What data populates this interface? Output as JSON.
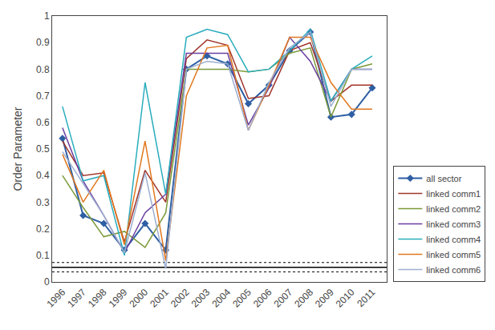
{
  "chart_data": {
    "type": "line",
    "x": [
      1996,
      1997,
      1998,
      1999,
      2000,
      2001,
      2002,
      2003,
      2004,
      2005,
      2006,
      2007,
      2008,
      2009,
      2010,
      2011
    ],
    "series": [
      {
        "name": "all sector",
        "color": "#2E5FA3",
        "marker": "diamond",
        "values": [
          0.54,
          0.25,
          0.22,
          0.12,
          0.22,
          0.12,
          0.8,
          0.85,
          0.82,
          0.67,
          0.74,
          0.87,
          0.94,
          0.62,
          0.63,
          0.73
        ]
      },
      {
        "name": "linked comm1",
        "color": "#A0342A",
        "values": [
          0.53,
          0.4,
          0.41,
          0.15,
          0.42,
          0.3,
          0.84,
          0.91,
          0.89,
          0.69,
          0.7,
          0.87,
          0.9,
          0.68,
          0.74,
          0.74
        ]
      },
      {
        "name": "linked comm2",
        "color": "#7B9A3A",
        "values": [
          0.4,
          0.28,
          0.17,
          0.19,
          0.13,
          0.26,
          0.8,
          0.8,
          0.8,
          0.79,
          0.8,
          0.86,
          0.88,
          0.62,
          0.8,
          0.82
        ]
      },
      {
        "name": "linked comm3",
        "color": "#6A3FA0",
        "values": [
          0.58,
          0.38,
          0.25,
          0.11,
          0.26,
          0.33,
          0.86,
          0.86,
          0.86,
          0.59,
          0.73,
          0.92,
          0.83,
          0.68,
          0.8,
          0.8
        ]
      },
      {
        "name": "linked comm4",
        "color": "#2AADBD",
        "values": [
          0.66,
          0.38,
          0.4,
          0.1,
          0.75,
          0.33,
          0.92,
          0.95,
          0.93,
          0.79,
          0.8,
          0.87,
          0.95,
          0.68,
          0.8,
          0.85
        ]
      },
      {
        "name": "linked comm5",
        "color": "#E07820",
        "values": [
          0.48,
          0.3,
          0.42,
          0.14,
          0.53,
          0.08,
          0.7,
          0.88,
          0.89,
          0.57,
          0.74,
          0.92,
          0.92,
          0.75,
          0.65,
          0.65
        ]
      },
      {
        "name": "linked comm6",
        "color": "#9DAFD0",
        "values": [
          0.49,
          0.37,
          0.25,
          0.11,
          0.41,
          0.05,
          0.8,
          0.83,
          0.82,
          0.57,
          0.75,
          0.88,
          0.94,
          0.66,
          0.8,
          0.8
        ]
      }
    ],
    "reference_lines": [
      {
        "value": 0.055,
        "line_style": "solid",
        "color": "#000000"
      },
      {
        "value": 0.073,
        "line_style": "dotted",
        "color": "#000000"
      },
      {
        "value": 0.038,
        "line_style": "dotted",
        "color": "#000000"
      }
    ],
    "ylabel": "Order Parameter",
    "xlim": [
      1995.5,
      2011.7
    ],
    "xticks": [
      1996,
      1997,
      1998,
      1999,
      2000,
      2001,
      2002,
      2003,
      2004,
      2005,
      2006,
      2007,
      2008,
      2009,
      2010,
      2011
    ],
    "ylim": [
      0,
      1.0
    ],
    "yticks": [
      0,
      0.1,
      0.2,
      0.3,
      0.4,
      0.5,
      0.6,
      0.7,
      0.8,
      0.9,
      1
    ],
    "grid": false,
    "legend": "lower right"
  }
}
